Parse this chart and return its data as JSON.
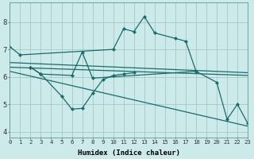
{
  "title": "",
  "xlabel": "Humidex (Indice chaleur)",
  "ylabel": "",
  "bg_color": "#cceaea",
  "grid_color": "#aacccc",
  "line_color": "#1a6b6b",
  "xlim": [
    0,
    23
  ],
  "ylim": [
    3.8,
    8.7
  ],
  "xticks": [
    0,
    1,
    2,
    3,
    4,
    5,
    6,
    7,
    8,
    9,
    10,
    11,
    12,
    13,
    14,
    15,
    16,
    17,
    18,
    19,
    20,
    21,
    22,
    23
  ],
  "yticks": [
    4,
    5,
    6,
    7,
    8
  ],
  "series": [
    {
      "comment": "top jagged line: starts at 0=7.1, goes to 1=6.8, then jumps at 10=7.0, 11=7.75, 12=7.65, 13=8.2, 14=7.6, 16=7.4, 17=7.3, 18=6.2",
      "x": [
        0,
        1,
        10,
        11,
        12,
        13,
        14,
        16,
        17,
        18
      ],
      "y": [
        7.1,
        6.8,
        7.0,
        7.75,
        7.65,
        8.2,
        7.6,
        7.4,
        7.3,
        6.2
      ],
      "marker": true
    },
    {
      "comment": "bottom jagged line: 2=6.35, 3=6.1, 6=6.05, 7=6.9, 8=5.95 then 18=6.2, 20=5.8, 21=4.45, 22=5.0, 23=4.3",
      "x": [
        2,
        3,
        6,
        7,
        8,
        18,
        20,
        21,
        22,
        23
      ],
      "y": [
        6.35,
        6.1,
        6.05,
        6.9,
        5.95,
        6.2,
        5.8,
        4.45,
        5.0,
        4.3
      ],
      "marker": true
    },
    {
      "comment": "middle zigzag: 2=6.35, 3=6.1, 5=5.3, 6=4.82, 7=4.85, 8=5.4, 9=5.9, 10=6.05, 11=6.1, 12=6.15",
      "x": [
        2,
        3,
        5,
        6,
        7,
        8,
        9,
        10,
        11,
        12
      ],
      "y": [
        6.35,
        6.1,
        5.3,
        4.82,
        4.85,
        5.4,
        5.9,
        6.05,
        6.1,
        6.15
      ],
      "marker": true
    },
    {
      "x": [
        0,
        23
      ],
      "y": [
        6.52,
        6.15
      ],
      "marker": false
    },
    {
      "x": [
        0,
        23
      ],
      "y": [
        6.35,
        6.05
      ],
      "marker": false
    },
    {
      "x": [
        0,
        23
      ],
      "y": [
        6.2,
        4.2
      ],
      "marker": false
    }
  ]
}
